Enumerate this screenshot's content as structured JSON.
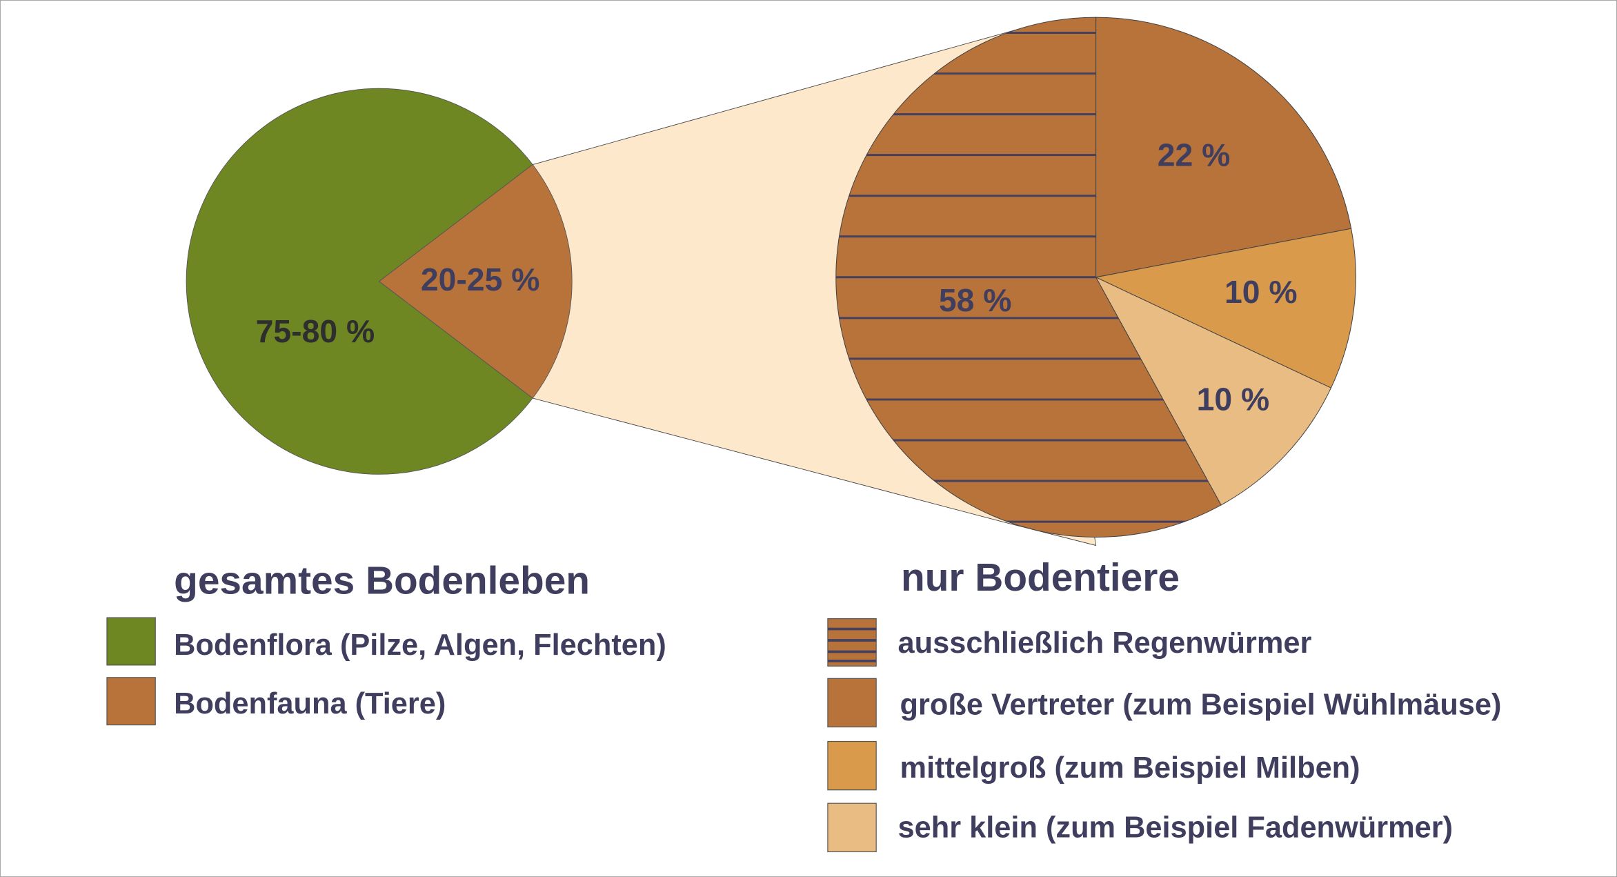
{
  "colors": {
    "flora": "#6e8723",
    "fauna": "#b8733a",
    "medium": "#d99b4b",
    "small": "#e9bc83",
    "connector": "#fde8cc",
    "text": "#403e5e",
    "hatch": "#444060"
  },
  "chart_data": [
    {
      "type": "pie",
      "title": "gesamtes Bodenleben",
      "slices": [
        {
          "name": "Bodenflora (Pilze, Algen, Flechten)",
          "label": "75-80 %",
          "value": 77.5,
          "color": "#6e8723"
        },
        {
          "name": "Bodenfauna (Tiere)",
          "label": "20-25 %",
          "value": 22.5,
          "color": "#b8733a"
        }
      ]
    },
    {
      "type": "pie",
      "title": "nur Bodentiere",
      "slices": [
        {
          "name": "große Vertreter (zum Beispiel Wühlmäuse)",
          "label": "22 %",
          "value": 22,
          "color": "#b8733a",
          "hatched": false
        },
        {
          "name": "mittelgroß (zum Beispiel Milben)",
          "label": "10 %",
          "value": 10,
          "color": "#d99b4b",
          "hatched": false
        },
        {
          "name": "sehr klein (zum Beispiel Fadenwürmer)",
          "label": "10 %",
          "value": 10,
          "color": "#e9bc83",
          "hatched": false
        },
        {
          "name": "ausschließlich Regenwürmer",
          "label": "58 %",
          "value": 58,
          "color": "#b8733a",
          "hatched": true
        }
      ]
    }
  ],
  "legend_left": {
    "title": "gesamtes Bodenleben",
    "items": [
      "Bodenflora (Pilze, Algen, Flechten)",
      "Bodenfauna (Tiere)"
    ]
  },
  "legend_right": {
    "title": "nur Bodentiere",
    "items": [
      "ausschließlich Regenwürmer",
      "große Vertreter (zum Beispiel Wühlmäuse)",
      "mittelgroß (zum Beispiel Milben)",
      "sehr klein (zum Beispiel Fadenwürmer)"
    ]
  }
}
